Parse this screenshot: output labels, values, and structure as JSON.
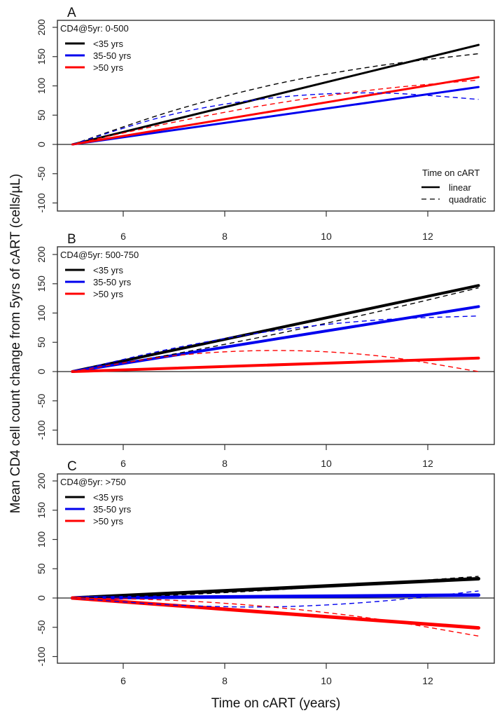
{
  "chart_data": {
    "type": "line",
    "ylabel": "Mean CD4 cell count change from 5yrs of cART (cells/µL)",
    "xlabel": "Time on cART (years)",
    "xlim": [
      5,
      13
    ],
    "ylim": [
      -100,
      200
    ],
    "x_ticks": [
      6,
      8,
      10,
      12
    ],
    "y_ticks": [
      -100,
      -50,
      0,
      50,
      100,
      150,
      200
    ],
    "grid": false,
    "colors": {
      "lt35": "#000000",
      "35to50": "#0000ee",
      "gt50": "#ff0000"
    },
    "group_legend": [
      "<35 yrs",
      "35-50 yrs",
      ">50 yrs"
    ],
    "model_legend": {
      "title": "Time on cART",
      "items": [
        "linear",
        "quadratic"
      ],
      "placement": "bottom-right (panel A)"
    },
    "panels": [
      {
        "letter": "A",
        "subtitle": "CD4@5yr:  0-500",
        "legend_placement": "top-left",
        "series": [
          {
            "name": "<35 yrs",
            "model": "linear",
            "color": "#000000",
            "x": [
              5,
              13
            ],
            "y": [
              0,
              170
            ]
          },
          {
            "name": "35-50 yrs",
            "model": "linear",
            "color": "#0000ee",
            "x": [
              5,
              13
            ],
            "y": [
              0,
              98
            ]
          },
          {
            "name": ">50 yrs",
            "model": "linear",
            "color": "#ff0000",
            "x": [
              5,
              13
            ],
            "y": [
              0,
              115
            ]
          },
          {
            "name": "<35 yrs",
            "model": "quadratic",
            "color": "#000000",
            "x": [
              5,
              7,
              9,
              11,
              13
            ],
            "y": [
              0,
              58,
              103,
              134,
              155
            ]
          },
          {
            "name": "35-50 yrs",
            "model": "quadratic",
            "color": "#0000ee",
            "x": [
              5,
              7,
              9,
              11,
              13
            ],
            "y": [
              0,
              52,
              80,
              88,
              77
            ]
          },
          {
            "name": ">50 yrs",
            "model": "quadratic",
            "color": "#ff0000",
            "x": [
              5,
              7,
              9,
              11,
              13
            ],
            "y": [
              0,
              38,
              70,
              94,
              110
            ]
          }
        ]
      },
      {
        "letter": "B",
        "subtitle": "CD4@5yr:  500-750",
        "legend_placement": "top-left",
        "series": [
          {
            "name": "<35 yrs",
            "model": "linear",
            "color": "#000000",
            "x": [
              5,
              13
            ],
            "y": [
              0,
              147
            ]
          },
          {
            "name": "35-50 yrs",
            "model": "linear",
            "color": "#0000ee",
            "x": [
              5,
              13
            ],
            "y": [
              0,
              111
            ]
          },
          {
            "name": ">50 yrs",
            "model": "linear",
            "color": "#ff0000",
            "x": [
              5,
              13
            ],
            "y": [
              0,
              23
            ]
          },
          {
            "name": "<35 yrs",
            "model": "quadratic",
            "color": "#000000",
            "x": [
              5,
              7,
              9,
              11,
              13
            ],
            "y": [
              0,
              30,
              64,
              102,
              143
            ]
          },
          {
            "name": "35-50 yrs",
            "model": "quadratic",
            "color": "#0000ee",
            "x": [
              5,
              7,
              9,
              11,
              13
            ],
            "y": [
              0,
              40,
              70,
              88,
              95
            ]
          },
          {
            "name": ">50 yrs",
            "model": "quadratic",
            "color": "#ff0000",
            "x": [
              5,
              7,
              9,
              11,
              13
            ],
            "y": [
              0,
              27,
              36,
              27,
              0
            ]
          }
        ]
      },
      {
        "letter": "C",
        "subtitle": "CD4@5yr:  >750",
        "legend_placement": "top-left",
        "series": [
          {
            "name": "<35 yrs",
            "model": "linear",
            "color": "#000000",
            "x": [
              5,
              13
            ],
            "y": [
              0,
              33
            ]
          },
          {
            "name": "35-50 yrs",
            "model": "linear",
            "color": "#0000ee",
            "x": [
              5,
              13
            ],
            "y": [
              0,
              5
            ]
          },
          {
            "name": ">50 yrs",
            "model": "linear",
            "color": "#ff0000",
            "x": [
              5,
              13
            ],
            "y": [
              0,
              -51
            ]
          },
          {
            "name": "<35 yrs",
            "model": "quadratic",
            "color": "#000000",
            "x": [
              5,
              7,
              9,
              11,
              13
            ],
            "y": [
              0,
              5,
              14,
              25,
              37
            ]
          },
          {
            "name": "35-50 yrs",
            "model": "quadratic",
            "color": "#0000ee",
            "x": [
              5,
              7,
              9,
              11,
              13
            ],
            "y": [
              0,
              -12,
              -15,
              -6,
              12
            ]
          },
          {
            "name": ">50 yrs",
            "model": "quadratic",
            "color": "#ff0000",
            "x": [
              5,
              7,
              9,
              11,
              13
            ],
            "y": [
              0,
              -4,
              -16,
              -36,
              -65
            ]
          }
        ]
      }
    ]
  }
}
